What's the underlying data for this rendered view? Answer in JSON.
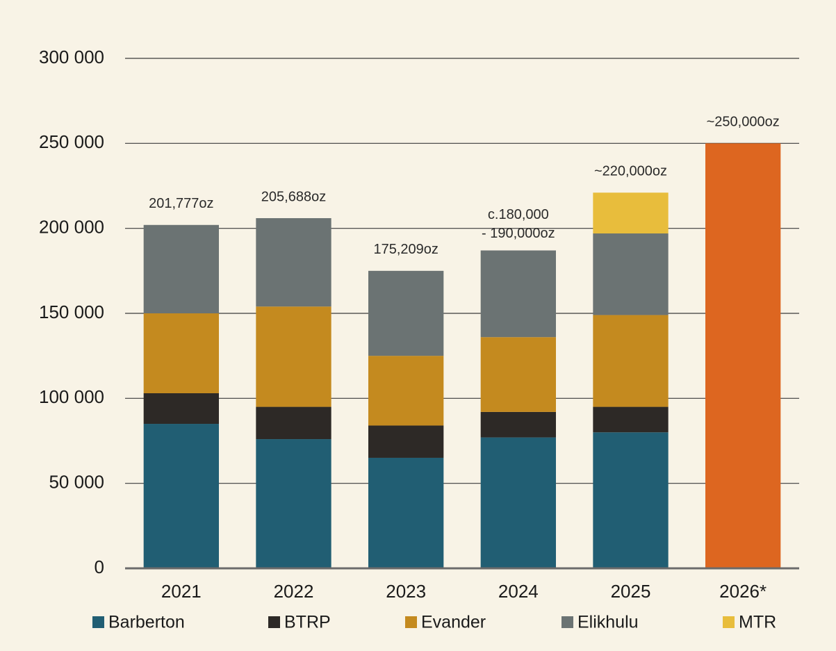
{
  "chart_data": {
    "type": "stacked_bar",
    "categories": [
      "2021",
      "2022",
      "2023",
      "2024",
      "2025",
      "2026*"
    ],
    "series": [
      {
        "name": "Barberton",
        "color": "#215e73",
        "values": [
          85000,
          76000,
          65000,
          77000,
          80000,
          null
        ]
      },
      {
        "name": "BTRP",
        "color": "#2d2926",
        "values": [
          18000,
          19000,
          19000,
          15000,
          15000,
          null
        ]
      },
      {
        "name": "Evander",
        "color": "#c48a1f",
        "values": [
          47000,
          59000,
          41000,
          44000,
          54000,
          null
        ]
      },
      {
        "name": "Elikhulu",
        "color": "#6b7373",
        "values": [
          52000,
          52000,
          50000,
          51000,
          48000,
          null
        ]
      },
      {
        "name": "MTR",
        "color": "#e8bd3c",
        "values": [
          null,
          null,
          null,
          null,
          24000,
          null
        ]
      },
      {
        "color": "#dd6620",
        "values": [
          null,
          null,
          null,
          null,
          null,
          250000
        ]
      }
    ],
    "annotations": [
      [
        "201,777oz"
      ],
      [
        "205,688oz"
      ],
      [
        "175,209oz"
      ],
      [
        "c.180,000",
        "- 190,000oz"
      ],
      [
        "~220,000oz"
      ],
      [
        "~250,000oz"
      ]
    ],
    "ylim": [
      0,
      300000
    ],
    "yticks": [
      0,
      {
        "value": 50000,
        "label": "50 000"
      },
      {
        "value": 100000,
        "label": "100 000"
      },
      {
        "value": 150000,
        "label": "150 000"
      },
      {
        "value": 200000,
        "label": "200 000"
      },
      {
        "value": 250000,
        "label": "250 000"
      },
      {
        "value": 300000,
        "label": "300 000"
      }
    ],
    "grid": true
  }
}
